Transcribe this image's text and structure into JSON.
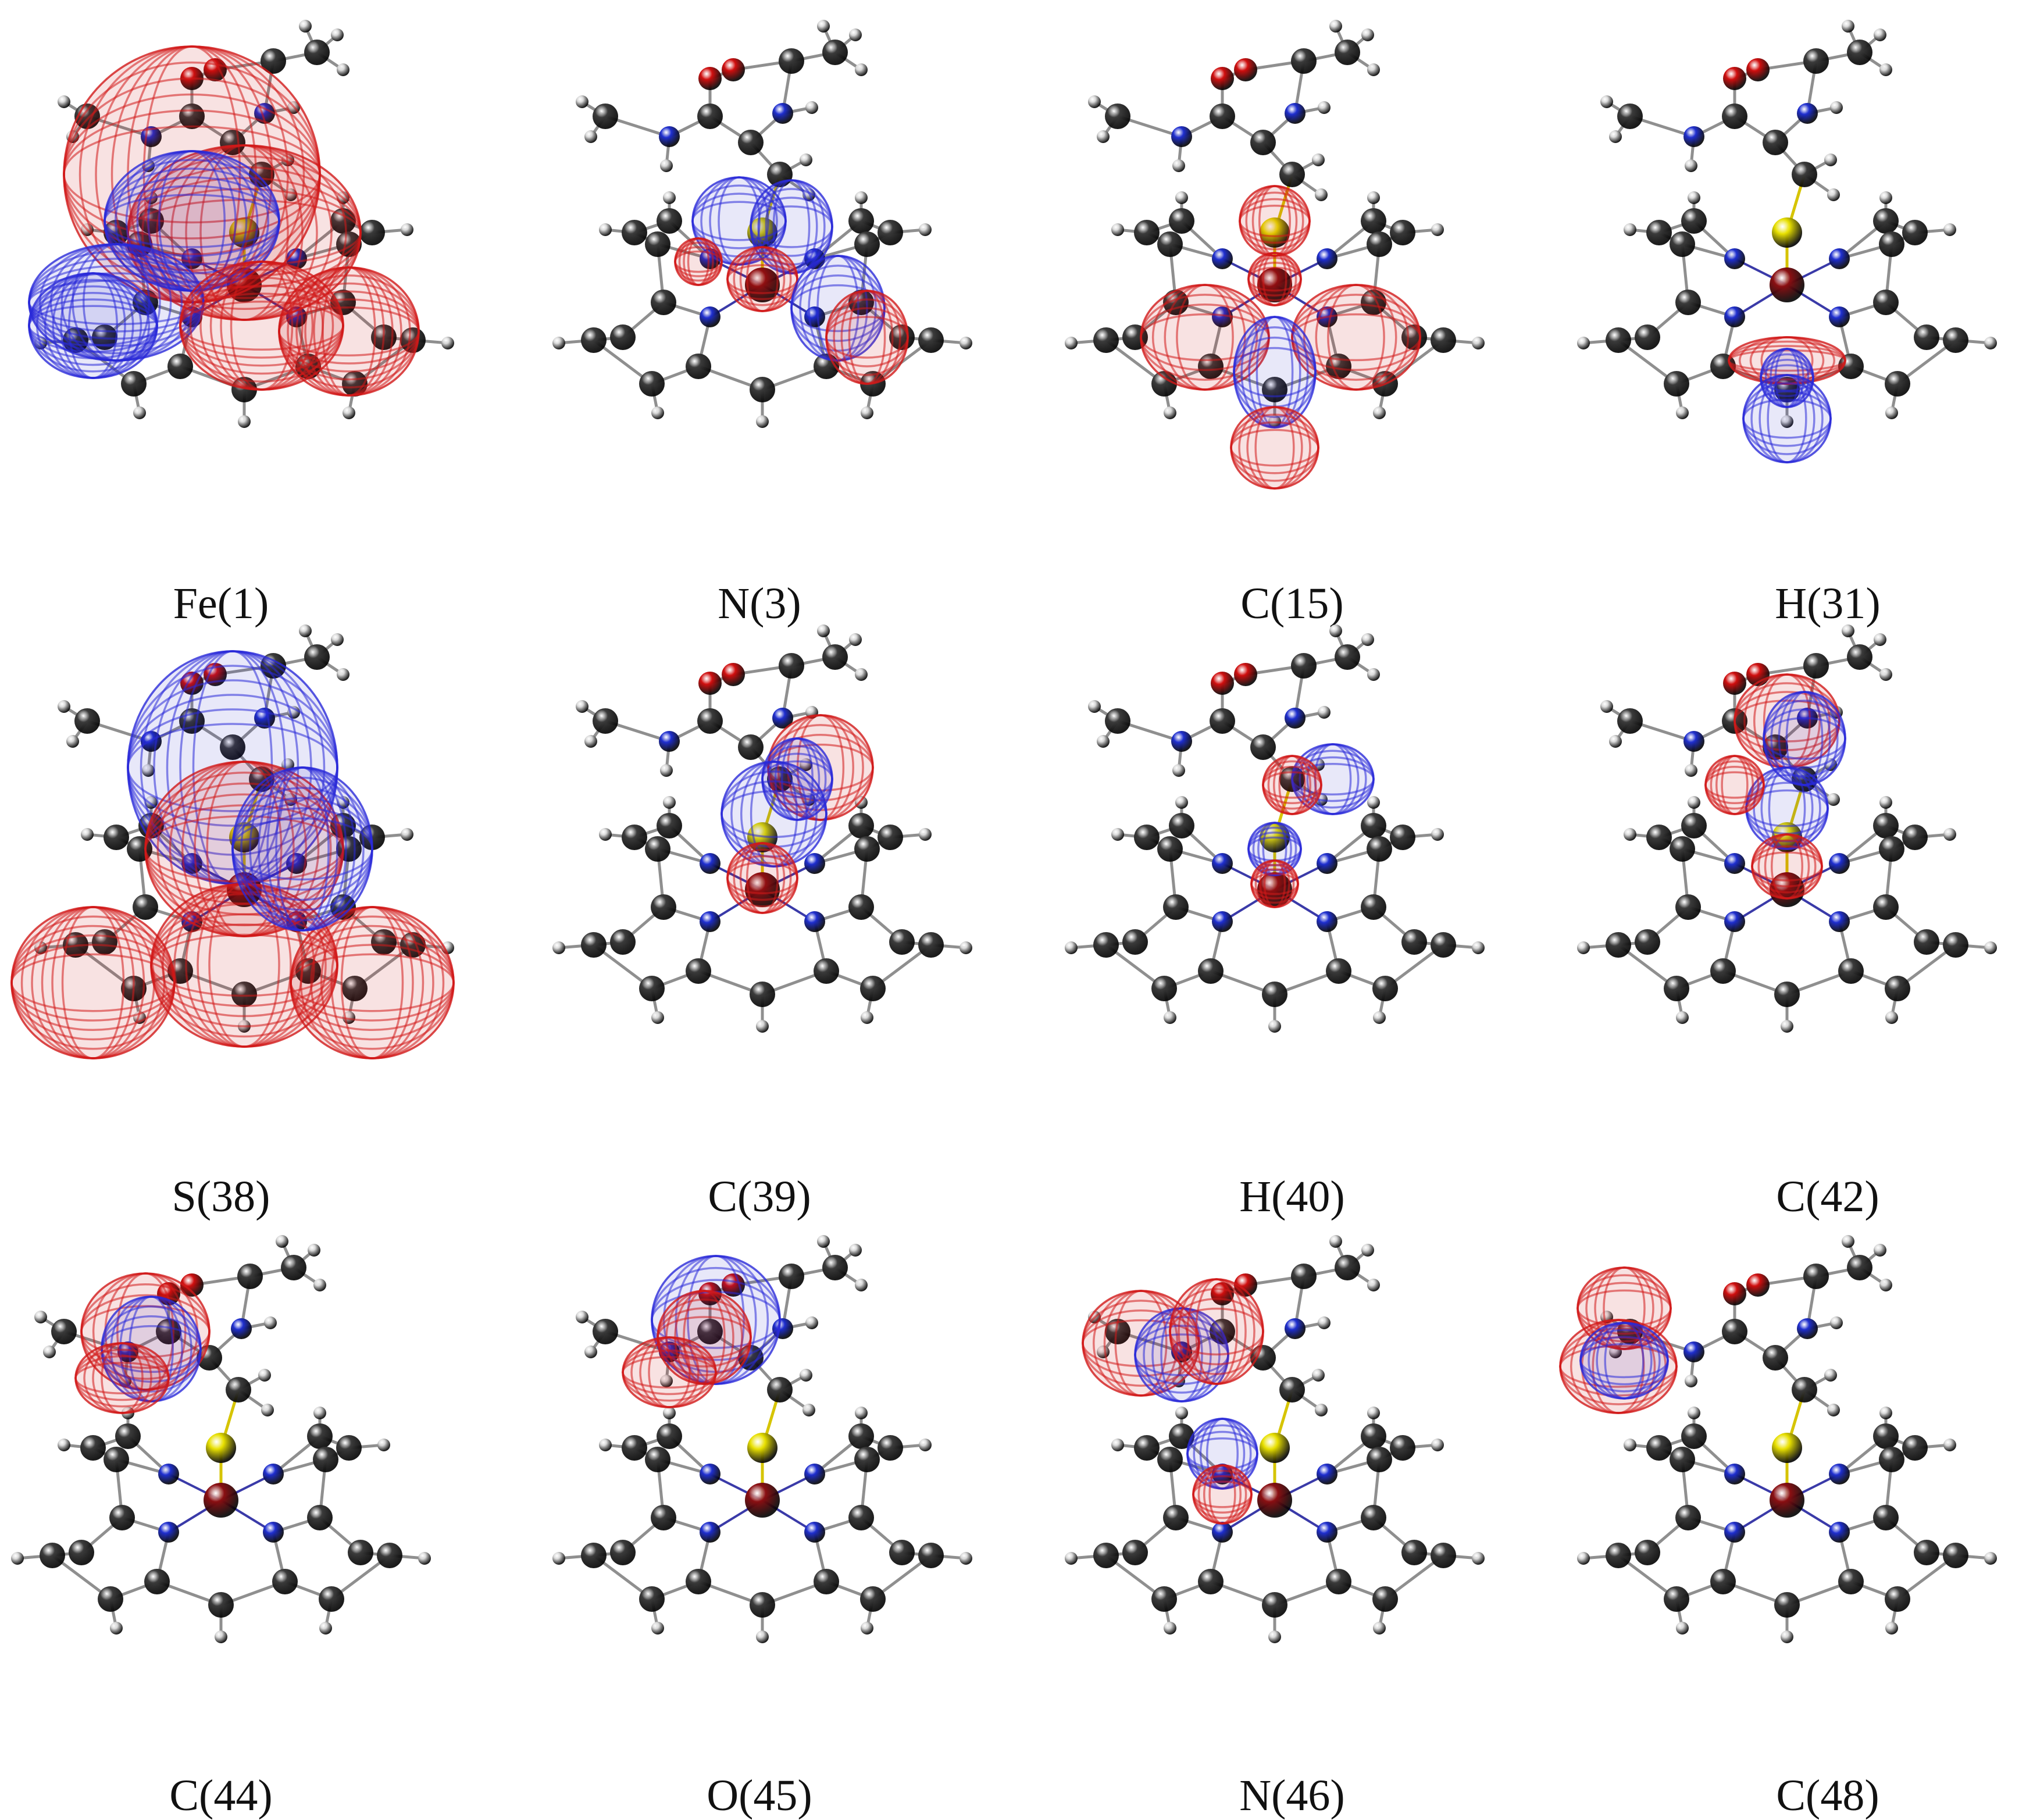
{
  "figure": {
    "panels": [
      {
        "label": "Fe(1)",
        "surface_on": "Fe",
        "extent": "large"
      },
      {
        "label": "N(3)",
        "surface_on": "N",
        "extent": "medium"
      },
      {
        "label": "C(15)",
        "surface_on": "C",
        "extent": "medium"
      },
      {
        "label": "H(31)",
        "surface_on": "H",
        "extent": "small"
      },
      {
        "label": "S(38)",
        "surface_on": "S",
        "extent": "large"
      },
      {
        "label": "C(39)",
        "surface_on": "C",
        "extent": "medium"
      },
      {
        "label": "H(40)",
        "surface_on": "H",
        "extent": "small"
      },
      {
        "label": "C(42)",
        "surface_on": "C",
        "extent": "medium"
      },
      {
        "label": "C(44)",
        "surface_on": "C",
        "extent": "medium"
      },
      {
        "label": "O(45)",
        "surface_on": "O",
        "extent": "medium"
      },
      {
        "label": "N(46)",
        "surface_on": "N",
        "extent": "medium"
      },
      {
        "label": "C(48)",
        "surface_on": "C",
        "extent": "small"
      }
    ],
    "colors": {
      "carbon": "#3b3b3b",
      "hydrogen": "#d9d9d9",
      "nitrogen": "#1f2fd0",
      "oxygen": "#d10f0f",
      "sulfur": "#e8e000",
      "iron": "#8a0f12",
      "positive_surface": "#d21a1a",
      "negative_surface": "#2a2ad8"
    }
  }
}
